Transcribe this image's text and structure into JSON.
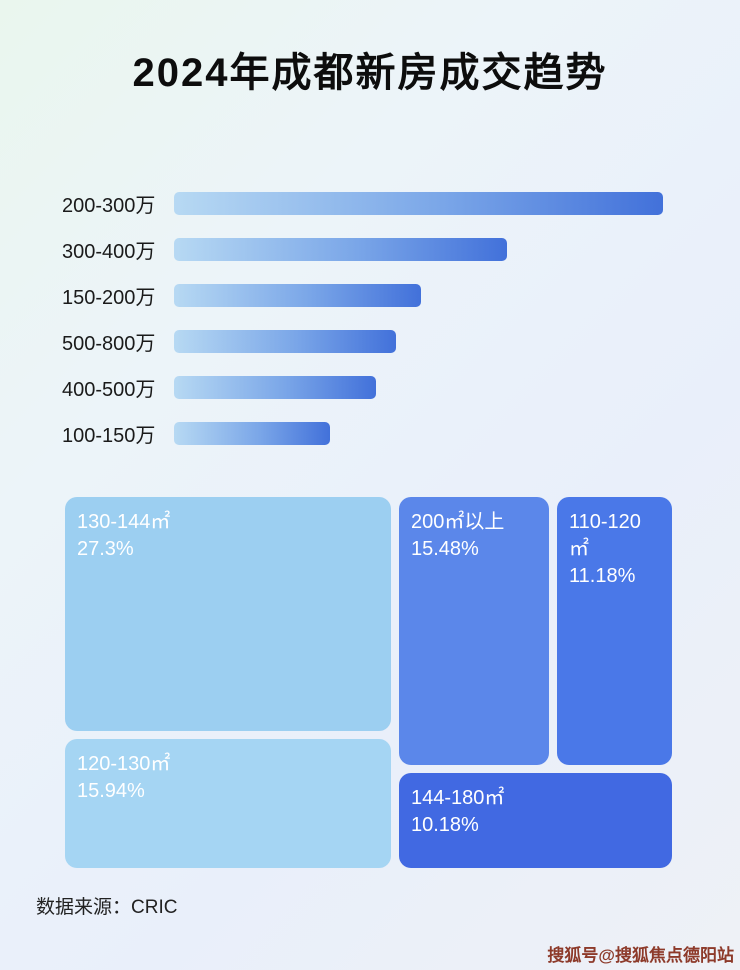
{
  "title": "2024年成都新房成交趋势",
  "source": "数据来源：CRIC",
  "watermark": "搜狐号@搜狐焦点德阳站",
  "colors": {
    "bar_gradient_start": "#b7d9f3",
    "bar_gradient_end": "#4271da",
    "watermark_color": "#8d3a2a"
  },
  "chart_data": [
    {
      "type": "bar",
      "orientation": "horizontal",
      "categories": [
        "200-300万",
        "300-400万",
        "150-200万",
        "500-800万",
        "400-500万",
        "100-150万"
      ],
      "values": [
        97,
        66,
        49,
        44,
        40,
        31
      ],
      "note": "条形图未标注数值，values 为条形长度占绘图区宽度的估算百分比",
      "xlim": [
        0,
        100
      ],
      "grid": false,
      "legend": false
    },
    {
      "type": "treemap",
      "items": [
        {
          "label": "130-144㎡",
          "value": "27.3%",
          "color": "#9ccff1"
        },
        {
          "label": "200㎡以上",
          "value": "15.48%",
          "color": "#5b87ea"
        },
        {
          "label": "110-120㎡",
          "value": "11.18%",
          "color": "#4a78e8"
        },
        {
          "label": "120-130㎡",
          "value": "15.94%",
          "color": "#a5d5f3"
        },
        {
          "label": "144-180㎡",
          "value": "10.18%",
          "color": "#4169e2"
        }
      ]
    }
  ]
}
